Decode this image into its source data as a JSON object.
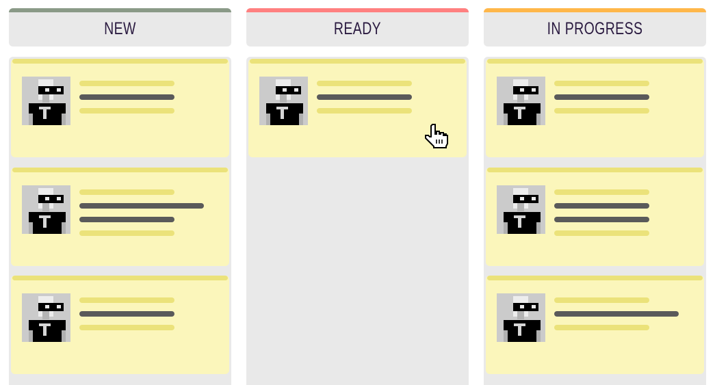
{
  "board": {
    "columns": [
      {
        "title": "NEW",
        "color": "#8a9a87",
        "cards": [
          {
            "lines": [
              {
                "type": "y",
                "size": "short"
              },
              {
                "type": "g",
                "size": "short"
              },
              {
                "type": "y",
                "size": "short"
              }
            ]
          },
          {
            "lines": [
              {
                "type": "y",
                "size": "short"
              },
              {
                "type": "g",
                "size": "long"
              },
              {
                "type": "g",
                "size": "short"
              },
              {
                "type": "y",
                "size": "short"
              }
            ]
          },
          {
            "lines": [
              {
                "type": "y",
                "size": "short"
              },
              {
                "type": "g",
                "size": "short"
              },
              {
                "type": "y",
                "size": "short"
              }
            ]
          }
        ]
      },
      {
        "title": "READY",
        "color": "#ff8080",
        "cards": [
          {
            "lines": [
              {
                "type": "y",
                "size": "short"
              },
              {
                "type": "g",
                "size": "short"
              },
              {
                "type": "y",
                "size": "short"
              }
            ]
          }
        ]
      },
      {
        "title": "IN PROGRESS",
        "color": "#ffb74a",
        "cards": [
          {
            "lines": [
              {
                "type": "y",
                "size": "short"
              },
              {
                "type": "g",
                "size": "short"
              },
              {
                "type": "y",
                "size": "short"
              }
            ]
          },
          {
            "lines": [
              {
                "type": "y",
                "size": "short"
              },
              {
                "type": "g",
                "size": "short"
              },
              {
                "type": "g",
                "size": "short"
              },
              {
                "type": "y",
                "size": "short"
              }
            ]
          },
          {
            "lines": [
              {
                "type": "y",
                "size": "short"
              },
              {
                "type": "g",
                "size": "long"
              },
              {
                "type": "y",
                "size": "short"
              }
            ]
          }
        ]
      }
    ]
  },
  "icons": {
    "avatar": "pixel-avatar-glasses",
    "cursor": "hand-pointer-cursor"
  }
}
